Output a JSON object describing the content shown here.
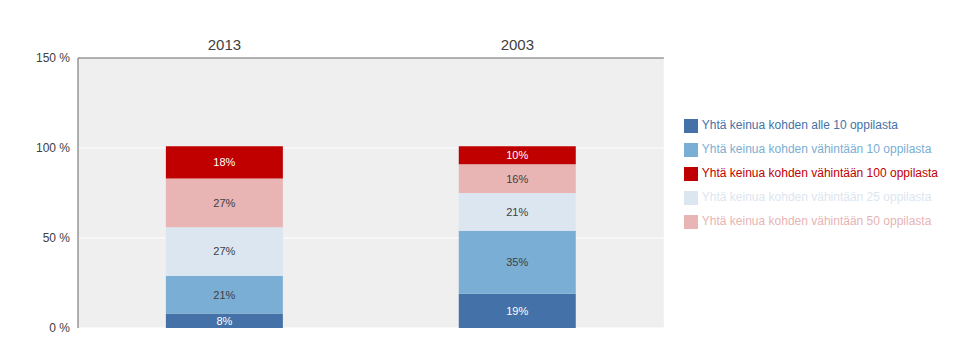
{
  "chart_data": {
    "type": "bar",
    "stacked": true,
    "categories": [
      "2013",
      "2003"
    ],
    "series": [
      {
        "name": "Yhtä keinua kohden alle 10 oppilasta",
        "color": "#4472a8",
        "values": [
          8,
          19
        ],
        "value_labels": [
          "8%",
          "19%"
        ]
      },
      {
        "name": "Yhtä keinua kohden vähintään 10 oppilasta",
        "color": "#7baed4",
        "values": [
          21,
          35
        ],
        "value_labels": [
          "21%",
          "35%"
        ]
      },
      {
        "name": "Yhtä keinua kohden vähintään 25 oppilasta",
        "color": "#dce6f1",
        "values": [
          27,
          21
        ],
        "value_labels": [
          "27%",
          "21%"
        ]
      },
      {
        "name": "Yhtä keinua kohden vähintään 50 oppilasta",
        "color": "#e8b4b4",
        "values": [
          27,
          16
        ],
        "value_labels": [
          "27%",
          "16%"
        ]
      },
      {
        "name": "Yhtä keinua kohden vähintään 100 oppilasta",
        "color": "#c00000",
        "values": [
          18,
          10
        ],
        "value_labels": [
          "18%",
          "10%"
        ]
      }
    ],
    "ylim": [
      0,
      150
    ],
    "yticks": [
      {
        "value": 0,
        "label": "0 %"
      },
      {
        "value": 50,
        "label": "50 %"
      },
      {
        "value": 100,
        "label": "100 %"
      },
      {
        "value": 150,
        "label": "150 %"
      }
    ],
    "grid": true,
    "legend": "right",
    "data_labels": true
  }
}
